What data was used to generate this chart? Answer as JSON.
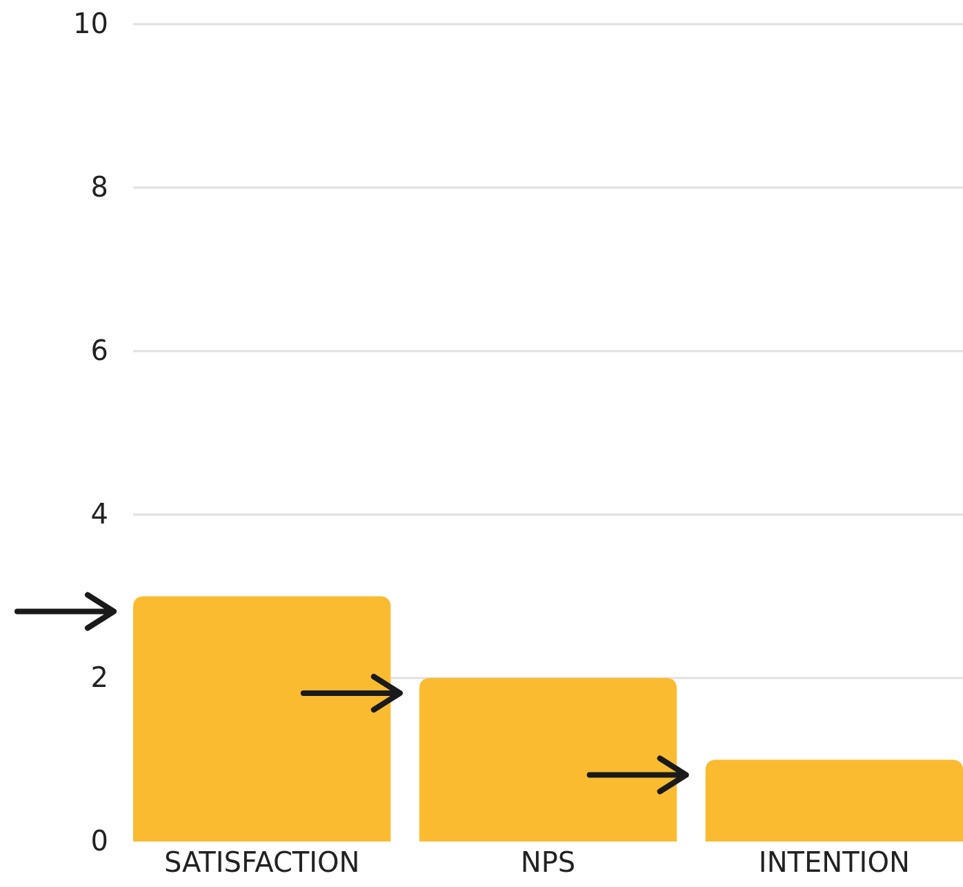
{
  "chart_data": {
    "type": "bar",
    "categories": [
      "SATISFACTION",
      "NPS",
      "INTENTION"
    ],
    "values": [
      3,
      2,
      1
    ],
    "color": "#fbbb30",
    "ylim": [
      0,
      10
    ],
    "yticks": [
      0,
      2,
      4,
      6,
      8,
      10
    ],
    "grid": "y"
  }
}
